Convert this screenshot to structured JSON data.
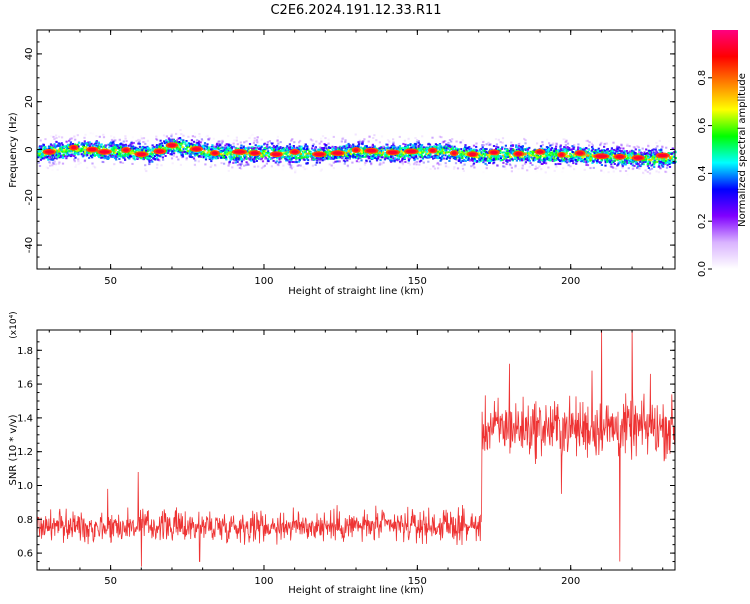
{
  "title": "C2E6.2024.191.12.33.R11",
  "chart_data": [
    {
      "type": "heatmap",
      "xlabel": "Height of straight line (km)",
      "ylabel": "Frequency (Hz)",
      "xlim": [
        26,
        234
      ],
      "ylim": [
        -50,
        50
      ],
      "x_ticks": [
        50,
        100,
        150,
        200
      ],
      "y_ticks": [
        -40,
        -20,
        0,
        20,
        40
      ],
      "colorbar": {
        "label": "Normalized spectral amplitude",
        "range": [
          0,
          1
        ],
        "ticks": [
          "0.0",
          "0.2",
          "0.4",
          "0.6",
          "0.8"
        ],
        "colors": [
          "#ffffff",
          "#d9b3ff",
          "#8000ff",
          "#0000ff",
          "#00ffff",
          "#00ff00",
          "#ffff00",
          "#ff8000",
          "#ff0000",
          "#ff0080"
        ]
      },
      "band": {
        "center_hz": [
          [
            26,
            -1.0
          ],
          [
            40,
            0.5
          ],
          [
            55,
            -0.5
          ],
          [
            62,
            -1.5
          ],
          [
            66,
            0.5
          ],
          [
            70,
            2.0
          ],
          [
            74,
            1.0
          ],
          [
            80,
            -0.5
          ],
          [
            90,
            -1.5
          ],
          [
            100,
            -1.0
          ],
          [
            115,
            -1.5
          ],
          [
            130,
            -0.5
          ],
          [
            140,
            -1.0
          ],
          [
            155,
            -0.5
          ],
          [
            170,
            -2.0
          ],
          [
            185,
            -1.5
          ],
          [
            200,
            -2.0
          ],
          [
            215,
            -2.5
          ],
          [
            225,
            -3.5
          ],
          [
            234,
            -3.0
          ]
        ],
        "peak_hz": [
          [
            30,
            -1.0
          ],
          [
            38,
            0.8
          ],
          [
            44,
            0.0
          ],
          [
            48,
            -1.0
          ],
          [
            55,
            -0.2
          ],
          [
            60,
            -2.0
          ],
          [
            66,
            -0.8
          ],
          [
            70,
            1.8
          ],
          [
            78,
            0.2
          ],
          [
            84,
            -1.5
          ],
          [
            92,
            -1.0
          ],
          [
            97,
            -1.5
          ],
          [
            104,
            -2.0
          ],
          [
            110,
            -1.0
          ],
          [
            118,
            -2.0
          ],
          [
            124,
            -1.5
          ],
          [
            130,
            -0.2
          ],
          [
            135,
            -0.5
          ],
          [
            142,
            -1.2
          ],
          [
            148,
            -0.8
          ],
          [
            155,
            -0.4
          ],
          [
            162,
            -1.5
          ],
          [
            168,
            -2.0
          ],
          [
            175,
            -1.2
          ],
          [
            183,
            -1.8
          ],
          [
            190,
            -1.0
          ],
          [
            197,
            -2.2
          ],
          [
            203,
            -1.5
          ],
          [
            210,
            -2.8
          ],
          [
            216,
            -3.0
          ],
          [
            222,
            -3.5
          ],
          [
            230,
            -2.5
          ]
        ]
      }
    },
    {
      "type": "line",
      "xlabel": "Height of straight line (km)",
      "ylabel": "SNR (10 * v/v)",
      "scale_label": "(x10⁴)",
      "xlim": [
        26,
        234
      ],
      "ylim": [
        0.5,
        1.92
      ],
      "x_ticks": [
        50,
        100,
        150,
        200
      ],
      "y_ticks": [
        "0.6",
        "0.8",
        "1.0",
        "1.2",
        "1.4",
        "1.6",
        "1.8"
      ],
      "series": [
        {
          "color": "#ee3333",
          "segments": [
            {
              "x": [
                26,
                171
              ],
              "mean": 0.76,
              "noise": 0.07
            },
            {
              "x": [
                171,
                234
              ],
              "mean": 1.34,
              "noise": 0.13
            }
          ],
          "extremes": [
            [
              60,
              0.52
            ],
            [
              79,
              0.55
            ],
            [
              49,
              0.98
            ],
            [
              59,
              1.08
            ],
            [
              180,
              1.72
            ],
            [
              210,
              1.95
            ],
            [
              216,
              0.55
            ],
            [
              220,
              1.95
            ],
            [
              207,
              1.68
            ],
            [
              226,
              1.66
            ],
            [
              197,
              0.95
            ]
          ]
        }
      ]
    }
  ]
}
